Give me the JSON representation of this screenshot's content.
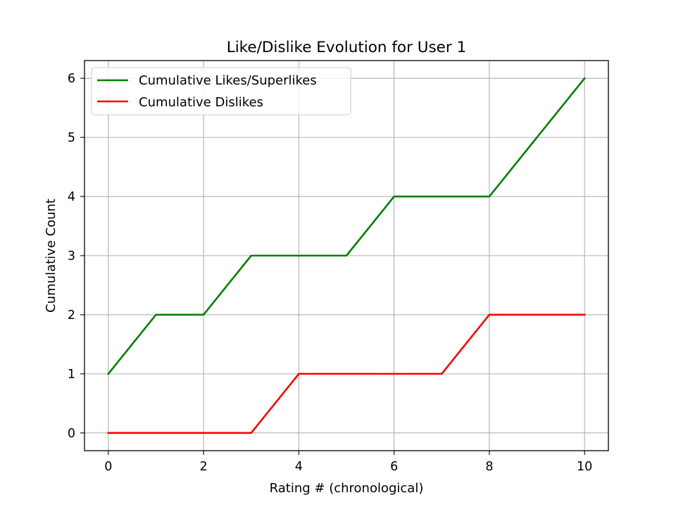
{
  "chart_data": {
    "type": "line",
    "title": "Like/Dislike Evolution for User 1",
    "xlabel": "Rating # (chronological)",
    "ylabel": "Cumulative Count",
    "xlim": [
      -0.5,
      10.5
    ],
    "ylim": [
      -0.3,
      6.3
    ],
    "xticks": [
      0,
      2,
      4,
      6,
      8,
      10
    ],
    "yticks": [
      0,
      1,
      2,
      3,
      4,
      5,
      6
    ],
    "xtick_labels": [
      "0",
      "2",
      "4",
      "6",
      "8",
      "10"
    ],
    "ytick_labels": [
      "0",
      "1",
      "2",
      "3",
      "4",
      "5",
      "6"
    ],
    "grid": true,
    "legend_position": "upper-left",
    "x": [
      0,
      1,
      2,
      3,
      4,
      5,
      6,
      7,
      8,
      9,
      10
    ],
    "series": [
      {
        "name": "Cumulative Likes/Superlikes",
        "color": "#008000",
        "values": [
          1,
          2,
          2,
          3,
          3,
          3,
          4,
          4,
          4,
          5,
          6
        ]
      },
      {
        "name": "Cumulative Dislikes",
        "color": "#ff0000",
        "values": [
          0,
          0,
          0,
          0,
          1,
          1,
          1,
          1,
          2,
          2,
          2
        ]
      }
    ]
  }
}
